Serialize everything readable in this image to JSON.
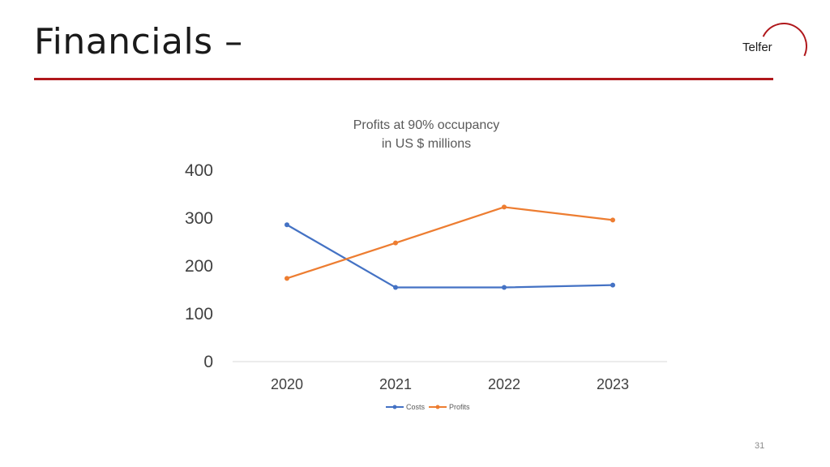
{
  "slide": {
    "title": "Financials –",
    "logo_text": "Telfer",
    "page_number": "31"
  },
  "colors": {
    "accent_red": "#b0181c",
    "costs": "#4472c4",
    "profits": "#ed7d31"
  },
  "chart_data": {
    "type": "line",
    "title_lines": [
      "Profits at 90% occupancy",
      "in US $ millions"
    ],
    "categories": [
      "2020",
      "2021",
      "2022",
      "2023"
    ],
    "series": [
      {
        "name": "Costs",
        "values": [
          286,
          155,
          155,
          160
        ]
      },
      {
        "name": "Profits",
        "values": [
          174,
          248,
          323,
          296
        ]
      }
    ],
    "yticks": [
      "0",
      "100",
      "200",
      "300",
      "400"
    ],
    "ylim": [
      0,
      400
    ],
    "grid": false,
    "legend_position": "bottom"
  }
}
